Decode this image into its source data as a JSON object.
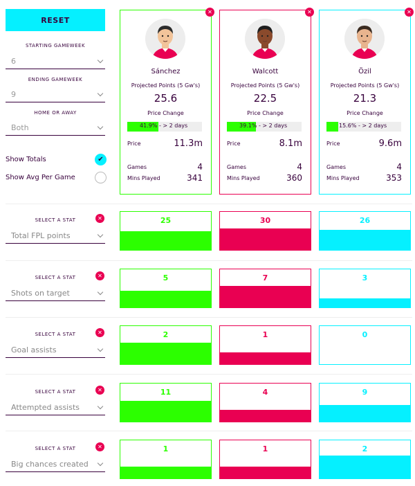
{
  "sidebar": {
    "reset_label": "RESET",
    "starting_gameweek_label": "STARTING GAMEWEEK",
    "starting_gameweek_value": "6",
    "ending_gameweek_label": "ENDING GAMEWEEK",
    "ending_gameweek_value": "9",
    "home_away_label": "HOME OR AWAY",
    "home_away_value": "Both",
    "show_totals_label": "Show Totals",
    "show_totals_checked": true,
    "show_avg_label": "Show Avg Per Game",
    "show_avg_checked": false
  },
  "colors": {
    "green": "#2cff00",
    "pink": "#e90052",
    "cyan": "#05f0ff",
    "purple": "#37003c"
  },
  "players": [
    {
      "name": "Sánchez",
      "color": "green",
      "projected_label": "Projected Points (5 Gw's)",
      "projected": "25.6",
      "price_change_label": "Price Change",
      "price_change_text": "41.9% - > 2 days",
      "price_change_pct": 41.9,
      "price_label": "Price",
      "price": "11.3m",
      "games_label": "Games",
      "games": "4",
      "mins_label": "Mins Played",
      "mins": "341",
      "skin": "#f2c49a",
      "hair": "#2b2b2b"
    },
    {
      "name": "Walcott",
      "color": "pink",
      "projected_label": "Projected Points (5 Gw's)",
      "projected": "22.5",
      "price_change_label": "Price Change",
      "price_change_text": "39.1% - > 2 days",
      "price_change_pct": 39.1,
      "price_label": "Price",
      "price": "8.1m",
      "games_label": "Games",
      "games": "4",
      "mins_label": "Mins Played",
      "mins": "360",
      "skin": "#8a4a2c",
      "hair": "#1f1f1f"
    },
    {
      "name": "Özil",
      "color": "cyan",
      "projected_label": "Projected Points (5 Gw's)",
      "projected": "21.3",
      "price_change_label": "Price Change",
      "price_change_text": "15.6% - > 2 days",
      "price_change_pct": 15.6,
      "price_label": "Price",
      "price": "9.6m",
      "games_label": "Games",
      "games": "4",
      "mins_label": "Mins Played",
      "mins": "353",
      "skin": "#e8b48e",
      "hair": "#3a2a20"
    }
  ],
  "stats": [
    {
      "select_label": "SELECT A STAT",
      "stat": "Total FPL points",
      "values": [
        "25",
        "30",
        "26"
      ],
      "fill": [
        0.47,
        0.55,
        0.5
      ]
    },
    {
      "select_label": "SELECT A STAT",
      "stat": "Shots on target",
      "values": [
        "5",
        "7",
        "3"
      ],
      "fill": [
        0.42,
        0.55,
        0.22
      ]
    },
    {
      "select_label": "SELECT A STAT",
      "stat": "Goal assists",
      "values": [
        "2",
        "1",
        "0"
      ],
      "fill": [
        0.55,
        0.3,
        0.0
      ]
    },
    {
      "select_label": "SELECT A STAT",
      "stat": "Attempted assists",
      "values": [
        "11",
        "4",
        "9"
      ],
      "fill": [
        0.52,
        0.3,
        0.42
      ]
    },
    {
      "select_label": "SELECT A STAT",
      "stat": "Big chances created",
      "values": [
        "1",
        "1",
        "2"
      ],
      "fill": [
        0.3,
        0.3,
        0.58
      ]
    }
  ],
  "remove_icon": "close-icon"
}
